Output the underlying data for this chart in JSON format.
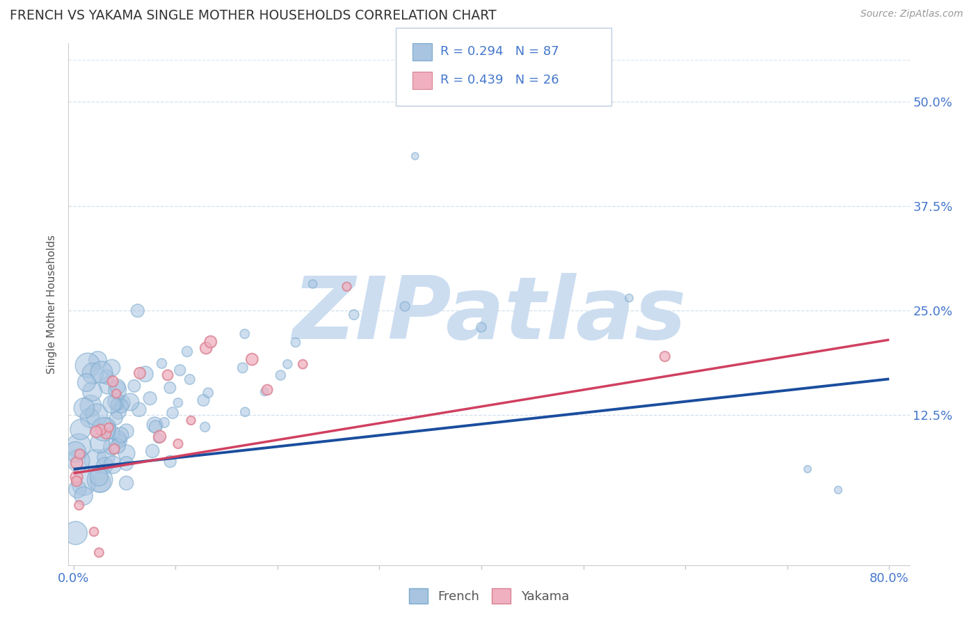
{
  "title": "FRENCH VS YAKAMA SINGLE MOTHER HOUSEHOLDS CORRELATION CHART",
  "source": "Source: ZipAtlas.com",
  "ylabel": "Single Mother Households",
  "xlim": [
    -0.005,
    0.82
  ],
  "ylim": [
    -0.055,
    0.57
  ],
  "xtick_positions": [
    0.0,
    0.1,
    0.2,
    0.3,
    0.4,
    0.5,
    0.6,
    0.7,
    0.8
  ],
  "xticklabels": [
    "0.0%",
    "",
    "",
    "",
    "",
    "",
    "",
    "",
    "80.0%"
  ],
  "ytick_positions": [
    0.125,
    0.25,
    0.375,
    0.5
  ],
  "ytick_labels": [
    "12.5%",
    "25.0%",
    "37.5%",
    "50.0%"
  ],
  "french_R": 0.294,
  "french_N": 87,
  "yakama_R": 0.439,
  "yakama_N": 26,
  "french_color": "#a8c4e0",
  "french_edge_color": "#7aaace",
  "french_line_color": "#1a4d9e",
  "yakama_color": "#f0b0c0",
  "yakama_edge_color": "#d88090",
  "yakama_line_color": "#d04060",
  "watermark": "ZIPatlas",
  "watermark_color": "#ccddf0",
  "grid_color": "#c8d8e8",
  "bg_color": "#ffffff",
  "title_color": "#333333",
  "axis_label_color": "#555555",
  "tick_label_color": "#4477cc",
  "source_color": "#999999"
}
